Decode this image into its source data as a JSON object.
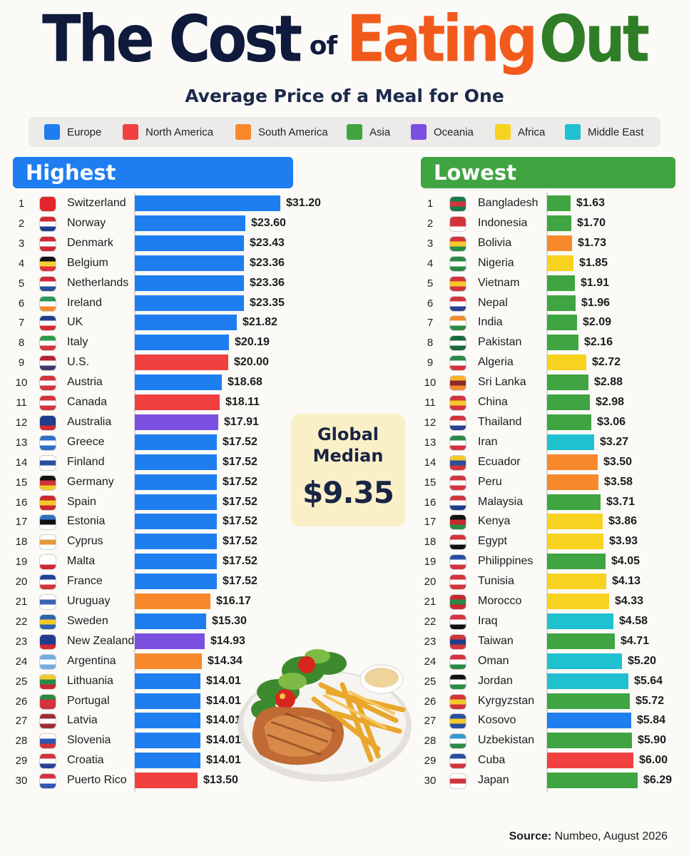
{
  "title": {
    "part1": "The Cost",
    "part2": "of",
    "part3": "Eating",
    "part4": "Out"
  },
  "subtitle": "Average Price of a Meal for One",
  "legend": [
    {
      "label": "Europe",
      "color": "#1e7ef0"
    },
    {
      "label": "North America",
      "color": "#f04040"
    },
    {
      "label": "South America",
      "color": "#f7892c"
    },
    {
      "label": "Asia",
      "color": "#3fa441"
    },
    {
      "label": "Oceania",
      "color": "#7b4fe0"
    },
    {
      "label": "Africa",
      "color": "#f7d21f"
    },
    {
      "label": "Middle East",
      "color": "#1fc0cf"
    }
  ],
  "median": {
    "label_line1": "Global",
    "label_line2": "Median",
    "value": "$9.35"
  },
  "source": {
    "label": "Source:",
    "text": "Numbeo, August 2026"
  },
  "chart_data": [
    {
      "type": "bar",
      "title": "Highest",
      "header_color": "#1e7ef0",
      "unit": "USD",
      "rows": [
        {
          "rank": 1,
          "country": "Switzerland",
          "value": 31.2,
          "label": "$31.20",
          "region": "Europe"
        },
        {
          "rank": 2,
          "country": "Norway",
          "value": 23.6,
          "label": "$23.60",
          "region": "Europe"
        },
        {
          "rank": 3,
          "country": "Denmark",
          "value": 23.43,
          "label": "$23.43",
          "region": "Europe"
        },
        {
          "rank": 4,
          "country": "Belgium",
          "value": 23.36,
          "label": "$23.36",
          "region": "Europe"
        },
        {
          "rank": 5,
          "country": "Netherlands",
          "value": 23.36,
          "label": "$23.36",
          "region": "Europe"
        },
        {
          "rank": 6,
          "country": "Ireland",
          "value": 23.35,
          "label": "$23.35",
          "region": "Europe"
        },
        {
          "rank": 7,
          "country": "UK",
          "value": 21.82,
          "label": "$21.82",
          "region": "Europe"
        },
        {
          "rank": 8,
          "country": "Italy",
          "value": 20.19,
          "label": "$20.19",
          "region": "Europe"
        },
        {
          "rank": 9,
          "country": "U.S.",
          "value": 20.0,
          "label": "$20.00",
          "region": "North America"
        },
        {
          "rank": 10,
          "country": "Austria",
          "value": 18.68,
          "label": "$18.68",
          "region": "Europe"
        },
        {
          "rank": 11,
          "country": "Canada",
          "value": 18.11,
          "label": "$18.11",
          "region": "North America"
        },
        {
          "rank": 12,
          "country": "Australia",
          "value": 17.91,
          "label": "$17.91",
          "region": "Oceania"
        },
        {
          "rank": 13,
          "country": "Greece",
          "value": 17.52,
          "label": "$17.52",
          "region": "Europe"
        },
        {
          "rank": 14,
          "country": "Finland",
          "value": 17.52,
          "label": "$17.52",
          "region": "Europe"
        },
        {
          "rank": 15,
          "country": "Germany",
          "value": 17.52,
          "label": "$17.52",
          "region": "Europe"
        },
        {
          "rank": 16,
          "country": "Spain",
          "value": 17.52,
          "label": "$17.52",
          "region": "Europe"
        },
        {
          "rank": 17,
          "country": "Estonia",
          "value": 17.52,
          "label": "$17.52",
          "region": "Europe"
        },
        {
          "rank": 18,
          "country": "Cyprus",
          "value": 17.52,
          "label": "$17.52",
          "region": "Europe"
        },
        {
          "rank": 19,
          "country": "Malta",
          "value": 17.52,
          "label": "$17.52",
          "region": "Europe"
        },
        {
          "rank": 20,
          "country": "France",
          "value": 17.52,
          "label": "$17.52",
          "region": "Europe"
        },
        {
          "rank": 21,
          "country": "Uruguay",
          "value": 16.17,
          "label": "$16.17",
          "region": "South America"
        },
        {
          "rank": 22,
          "country": "Sweden",
          "value": 15.3,
          "label": "$15.30",
          "region": "Europe"
        },
        {
          "rank": 23,
          "country": "New Zealand",
          "value": 14.93,
          "label": "$14.93",
          "region": "Oceania"
        },
        {
          "rank": 24,
          "country": "Argentina",
          "value": 14.34,
          "label": "$14.34",
          "region": "South America"
        },
        {
          "rank": 25,
          "country": "Lithuania",
          "value": 14.01,
          "label": "$14.01",
          "region": "Europe"
        },
        {
          "rank": 26,
          "country": "Portugal",
          "value": 14.01,
          "label": "$14.01",
          "region": "Europe"
        },
        {
          "rank": 27,
          "country": "Latvia",
          "value": 14.01,
          "label": "$14.01",
          "region": "Europe"
        },
        {
          "rank": 28,
          "country": "Slovenia",
          "value": 14.01,
          "label": "$14.01",
          "region": "Europe"
        },
        {
          "rank": 29,
          "country": "Croatia",
          "value": 14.01,
          "label": "$14.01",
          "region": "Europe"
        },
        {
          "rank": 30,
          "country": "Puerto Rico",
          "value": 13.5,
          "label": "$13.50",
          "region": "North America"
        }
      ]
    },
    {
      "type": "bar",
      "title": "Lowest",
      "header_color": "#3fa441",
      "unit": "USD",
      "rows": [
        {
          "rank": 1,
          "country": "Bangladesh",
          "value": 1.63,
          "label": "$1.63",
          "region": "Asia"
        },
        {
          "rank": 2,
          "country": "Indonesia",
          "value": 1.7,
          "label": "$1.70",
          "region": "Asia"
        },
        {
          "rank": 3,
          "country": "Bolivia",
          "value": 1.73,
          "label": "$1.73",
          "region": "South America"
        },
        {
          "rank": 4,
          "country": "Nigeria",
          "value": 1.85,
          "label": "$1.85",
          "region": "Africa"
        },
        {
          "rank": 5,
          "country": "Vietnam",
          "value": 1.91,
          "label": "$1.91",
          "region": "Asia"
        },
        {
          "rank": 6,
          "country": "Nepal",
          "value": 1.96,
          "label": "$1.96",
          "region": "Asia"
        },
        {
          "rank": 7,
          "country": "India",
          "value": 2.09,
          "label": "$2.09",
          "region": "Asia"
        },
        {
          "rank": 8,
          "country": "Pakistan",
          "value": 2.16,
          "label": "$2.16",
          "region": "Asia"
        },
        {
          "rank": 9,
          "country": "Algeria",
          "value": 2.72,
          "label": "$2.72",
          "region": "Africa"
        },
        {
          "rank": 10,
          "country": "Sri Lanka",
          "value": 2.88,
          "label": "$2.88",
          "region": "Asia"
        },
        {
          "rank": 11,
          "country": "China",
          "value": 2.98,
          "label": "$2.98",
          "region": "Asia"
        },
        {
          "rank": 12,
          "country": "Thailand",
          "value": 3.06,
          "label": "$3.06",
          "region": "Asia"
        },
        {
          "rank": 13,
          "country": "Iran",
          "value": 3.27,
          "label": "$3.27",
          "region": "Middle East"
        },
        {
          "rank": 14,
          "country": "Ecuador",
          "value": 3.5,
          "label": "$3.50",
          "region": "South America"
        },
        {
          "rank": 15,
          "country": "Peru",
          "value": 3.58,
          "label": "$3.58",
          "region": "South America"
        },
        {
          "rank": 16,
          "country": "Malaysia",
          "value": 3.71,
          "label": "$3.71",
          "region": "Asia"
        },
        {
          "rank": 17,
          "country": "Kenya",
          "value": 3.86,
          "label": "$3.86",
          "region": "Africa"
        },
        {
          "rank": 18,
          "country": "Egypt",
          "value": 3.93,
          "label": "$3.93",
          "region": "Africa"
        },
        {
          "rank": 19,
          "country": "Philippines",
          "value": 4.05,
          "label": "$4.05",
          "region": "Asia"
        },
        {
          "rank": 20,
          "country": "Tunisia",
          "value": 4.13,
          "label": "$4.13",
          "region": "Africa"
        },
        {
          "rank": 21,
          "country": "Morocco",
          "value": 4.33,
          "label": "$4.33",
          "region": "Africa"
        },
        {
          "rank": 22,
          "country": "Iraq",
          "value": 4.58,
          "label": "$4.58",
          "region": "Middle East"
        },
        {
          "rank": 23,
          "country": "Taiwan",
          "value": 4.71,
          "label": "$4.71",
          "region": "Asia"
        },
        {
          "rank": 24,
          "country": "Oman",
          "value": 5.2,
          "label": "$5.20",
          "region": "Middle East"
        },
        {
          "rank": 25,
          "country": "Jordan",
          "value": 5.64,
          "label": "$5.64",
          "region": "Middle East"
        },
        {
          "rank": 26,
          "country": "Kyrgyzstan",
          "value": 5.72,
          "label": "$5.72",
          "region": "Asia"
        },
        {
          "rank": 27,
          "country": "Kosovo",
          "value": 5.84,
          "label": "$5.84",
          "region": "Europe"
        },
        {
          "rank": 28,
          "country": "Uzbekistan",
          "value": 5.9,
          "label": "$5.90",
          "region": "Asia"
        },
        {
          "rank": 29,
          "country": "Cuba",
          "value": 6.0,
          "label": "$6.00",
          "region": "North America"
        },
        {
          "rank": 30,
          "country": "Japan",
          "value": 6.29,
          "label": "$6.29",
          "region": "Asia"
        }
      ]
    }
  ]
}
